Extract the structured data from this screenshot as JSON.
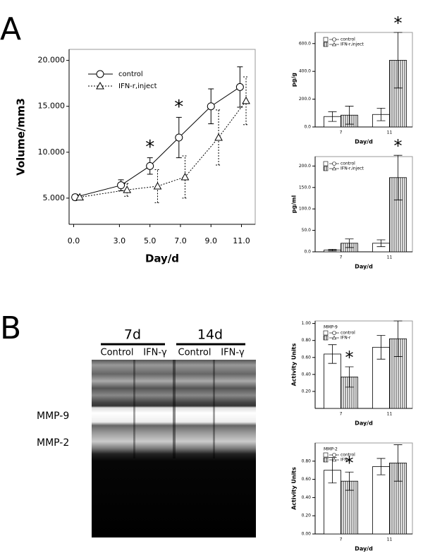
{
  "panel_labels": [
    "A",
    "B"
  ],
  "chart_data": [
    {
      "type": "line",
      "xlabel": "Day/d",
      "ylabel": "Volume/mm3",
      "xlim": [
        -0.3,
        11.9
      ],
      "ylim": [
        2.15,
        21.2
      ],
      "xticks": [
        {
          "value": 0,
          "label": "0.0"
        },
        {
          "value": 3,
          "label": "3.0"
        },
        {
          "value": 5,
          "label": "5.0"
        },
        {
          "value": 7,
          "label": "7.0"
        },
        {
          "value": 9,
          "label": "9.0"
        },
        {
          "value": 11,
          "label": "11.0"
        }
      ],
      "yticks": [
        {
          "value": 5,
          "label": "5.000"
        },
        {
          "value": 10,
          "label": "10.000"
        },
        {
          "value": 15,
          "label": "15.000"
        },
        {
          "value": 20,
          "label": "20.000"
        }
      ],
      "series": [
        {
          "name": "control",
          "color": "#000000",
          "marker": "circle",
          "dashed": false,
          "x": [
            0.1,
            3.1,
            5.0,
            6.9,
            9.0,
            10.9
          ],
          "values": [
            5.1,
            6.4,
            8.5,
            11.6,
            15.0,
            17.1
          ],
          "errors": [
            0.3,
            0.6,
            0.9,
            2.2,
            1.9,
            2.2
          ]
        },
        {
          "name": "IFN-r,inject",
          "color": "#000000",
          "marker": "triangle",
          "dashed": true,
          "x": [
            0.4,
            3.5,
            5.5,
            7.3,
            9.5,
            11.3
          ],
          "values": [
            5.1,
            5.9,
            6.3,
            7.3,
            11.6,
            15.6
          ],
          "errors": [
            0.2,
            0.7,
            1.8,
            2.3,
            3.0,
            2.6
          ]
        }
      ],
      "annotations": [
        "*",
        "*"
      ]
    },
    {
      "type": "bar",
      "xlabel": "Day/d",
      "ylabel": "pg/g",
      "categories": [
        "7",
        "11"
      ],
      "ylim": [
        0,
        680
      ],
      "yticks": [
        {
          "value": 0,
          "label": "0.0"
        },
        {
          "value": 200,
          "label": "200.0"
        },
        {
          "value": 400,
          "label": "400.0"
        },
        {
          "value": 600,
          "label": "600.0"
        }
      ],
      "series": [
        {
          "name": "control",
          "color": "#ffffff",
          "hatch": false,
          "marker": "circle",
          "values": [
            75,
            90
          ],
          "errors": [
            35,
            45
          ]
        },
        {
          "name": "IFN-r,inject",
          "color": "#333333",
          "hatch": true,
          "marker": "triangle",
          "values": [
            85,
            480
          ],
          "errors": [
            65,
            200
          ]
        }
      ],
      "annotations": [
        "*"
      ]
    },
    {
      "type": "bar",
      "xlabel": "Day/d",
      "ylabel": "pg/ml",
      "categories": [
        "7",
        "11"
      ],
      "ylim": [
        0,
        222
      ],
      "yticks": [
        {
          "value": 0,
          "label": "0.0"
        },
        {
          "value": 50,
          "label": "50.0"
        },
        {
          "value": 100,
          "label": "100.0"
        },
        {
          "value": 150,
          "label": "150.0"
        },
        {
          "value": 200,
          "label": "200.0"
        }
      ],
      "series": [
        {
          "name": "control",
          "color": "#ffffff",
          "hatch": false,
          "marker": "circle",
          "values": [
            4,
            20
          ],
          "errors": [
            2,
            8
          ]
        },
        {
          "name": "IFN-r,inject",
          "color": "#333333",
          "hatch": true,
          "marker": "triangle",
          "values": [
            20,
            173
          ],
          "errors": [
            10,
            52
          ]
        }
      ],
      "annotations": [
        "*"
      ]
    },
    {
      "type": "bar",
      "xlabel": "Day/d",
      "ylabel": "Activity Units",
      "legend_title": "MMP-9",
      "categories": [
        "7",
        "11"
      ],
      "ylim": [
        0,
        1.03
      ],
      "yticks": [
        {
          "value": 0.2,
          "label": "0.20"
        },
        {
          "value": 0.4,
          "label": "0.40"
        },
        {
          "value": 0.6,
          "label": "0.60"
        },
        {
          "value": 0.8,
          "label": "0.80"
        },
        {
          "value": 1,
          "label": "1.00"
        }
      ],
      "series": [
        {
          "name": "control",
          "color": "#ffffff",
          "hatch": false,
          "marker": "circle",
          "values": [
            0.64,
            0.72
          ],
          "errors": [
            0.11,
            0.14
          ]
        },
        {
          "name": "IFN-r",
          "color": "#333333",
          "hatch": true,
          "marker": "triangle",
          "values": [
            0.37,
            0.82
          ],
          "errors": [
            0.12,
            0.21
          ]
        }
      ],
      "annotations": [
        "*"
      ]
    },
    {
      "type": "bar",
      "xlabel": "Day/d",
      "ylabel": "Activity Units",
      "legend_title": "MMP-2",
      "categories": [
        "7",
        "11"
      ],
      "ylim": [
        0,
        1.0
      ],
      "yticks": [
        {
          "value": 0,
          "label": "0.00"
        },
        {
          "value": 0.2,
          "label": "0.20"
        },
        {
          "value": 0.4,
          "label": "0.40"
        },
        {
          "value": 0.6,
          "label": "0.60"
        },
        {
          "value": 0.8,
          "label": "0.80"
        }
      ],
      "series": [
        {
          "name": "control",
          "color": "#ffffff",
          "hatch": false,
          "marker": "circle",
          "values": [
            0.7,
            0.74
          ],
          "errors": [
            0.14,
            0.09
          ]
        },
        {
          "name": "IFN-r",
          "color": "#333333",
          "hatch": true,
          "marker": "triangle",
          "values": [
            0.58,
            0.78
          ],
          "errors": [
            0.1,
            0.2
          ]
        }
      ],
      "annotations": [
        "*"
      ]
    }
  ],
  "gel": {
    "time_labels": [
      "7d",
      "14d"
    ],
    "lane_labels": [
      "Control",
      "IFN-γ",
      "Control",
      "IFN-γ"
    ],
    "band_labels": [
      "MMP-9",
      "MMP-2"
    ]
  }
}
